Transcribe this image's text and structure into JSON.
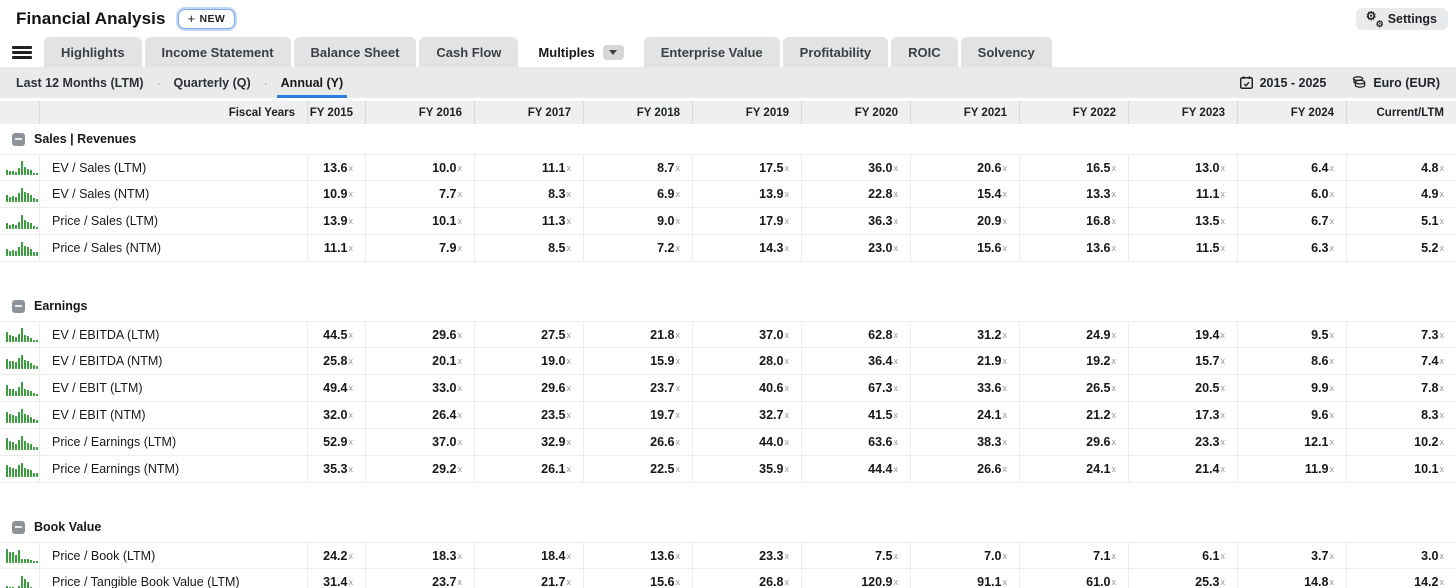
{
  "colors": {
    "accent_blue": "#2b7de1",
    "spark_green": "#3d9c40"
  },
  "header": {
    "title": "Financial Analysis",
    "new_button_label": "NEW",
    "settings_label": "Settings"
  },
  "tabs": [
    {
      "label": "Highlights",
      "selected": false
    },
    {
      "label": "Income Statement",
      "selected": false
    },
    {
      "label": "Balance Sheet",
      "selected": false
    },
    {
      "label": "Cash Flow",
      "selected": false
    },
    {
      "label": "Multiples",
      "selected": true,
      "has_caret": true
    },
    {
      "label": "Enterprise Value",
      "selected": false
    },
    {
      "label": "Profitability",
      "selected": false
    },
    {
      "label": "ROIC",
      "selected": false
    },
    {
      "label": "Solvency",
      "selected": false
    }
  ],
  "period_bar": {
    "items": [
      {
        "label": "Last 12 Months (LTM)",
        "selected": false
      },
      {
        "label": "Quarterly (Q)",
        "selected": false
      },
      {
        "label": "Annual (Y)",
        "selected": true
      }
    ],
    "date_range": "2015 - 2025",
    "currency": "Euro (EUR)"
  },
  "table": {
    "first_header": "Fiscal Years",
    "columns": [
      "FY 2015",
      "FY 2016",
      "FY 2017",
      "FY 2018",
      "FY 2019",
      "FY 2020",
      "FY 2021",
      "FY 2022",
      "FY 2023",
      "FY 2024",
      "Current/LTM"
    ],
    "value_suffix": "x",
    "sections": [
      {
        "title": "Sales | Revenues",
        "rows": [
          {
            "label": "EV / Sales (LTM)",
            "values": [
              13.6,
              10.0,
              11.1,
              8.7,
              17.5,
              36.0,
              20.6,
              16.5,
              13.0,
              6.4,
              4.8
            ]
          },
          {
            "label": "EV / Sales (NTM)",
            "values": [
              10.9,
              7.7,
              8.3,
              6.9,
              13.9,
              22.8,
              15.4,
              13.3,
              11.1,
              6.0,
              4.9
            ]
          },
          {
            "label": "Price / Sales (LTM)",
            "values": [
              13.9,
              10.1,
              11.3,
              9.0,
              17.9,
              36.3,
              20.9,
              16.8,
              13.5,
              6.7,
              5.1
            ]
          },
          {
            "label": "Price / Sales (NTM)",
            "values": [
              11.1,
              7.9,
              8.5,
              7.2,
              14.3,
              23.0,
              15.6,
              13.6,
              11.5,
              6.3,
              5.2
            ]
          }
        ]
      },
      {
        "title": "Earnings",
        "rows": [
          {
            "label": "EV / EBITDA (LTM)",
            "values": [
              44.5,
              29.6,
              27.5,
              21.8,
              37.0,
              62.8,
              31.2,
              24.9,
              19.4,
              9.5,
              7.3
            ]
          },
          {
            "label": "EV / EBITDA (NTM)",
            "values": [
              25.8,
              20.1,
              19.0,
              15.9,
              28.0,
              36.4,
              21.9,
              19.2,
              15.7,
              8.6,
              7.4
            ]
          },
          {
            "label": "EV / EBIT (LTM)",
            "values": [
              49.4,
              33.0,
              29.6,
              23.7,
              40.6,
              67.3,
              33.6,
              26.5,
              20.5,
              9.9,
              7.8
            ]
          },
          {
            "label": "EV / EBIT (NTM)",
            "values": [
              32.0,
              26.4,
              23.5,
              19.7,
              32.7,
              41.5,
              24.1,
              21.2,
              17.3,
              9.6,
              8.3
            ]
          },
          {
            "label": "Price / Earnings (LTM)",
            "values": [
              52.9,
              37.0,
              32.9,
              26.6,
              44.0,
              63.6,
              38.3,
              29.6,
              23.3,
              12.1,
              10.2
            ]
          },
          {
            "label": "Price / Earnings (NTM)",
            "values": [
              35.3,
              29.2,
              26.1,
              22.5,
              35.9,
              44.4,
              26.6,
              24.1,
              21.4,
              11.9,
              10.1
            ]
          }
        ]
      },
      {
        "title": "Book Value",
        "rows": [
          {
            "label": "Price / Book (LTM)",
            "values": [
              24.2,
              18.3,
              18.4,
              13.6,
              23.3,
              7.5,
              7.0,
              7.1,
              6.1,
              3.7,
              3.0
            ]
          },
          {
            "label": "Price / Tangible Book Value (LTM)",
            "values": [
              31.4,
              23.7,
              21.7,
              15.6,
              26.8,
              120.9,
              91.1,
              61.0,
              25.3,
              14.8,
              14.2
            ]
          }
        ]
      }
    ]
  }
}
